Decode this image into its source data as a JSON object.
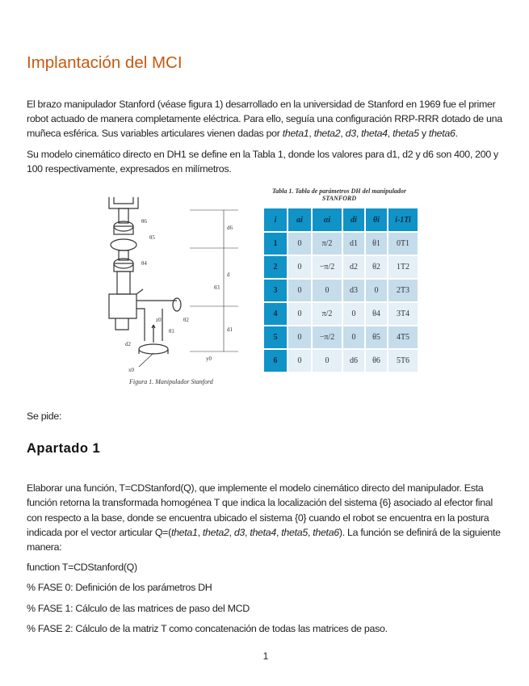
{
  "title": "Implantación del MCI",
  "intro": {
    "p1_pre": "El brazo manipulador Stanford (véase figura 1) desarrollado en la universidad de Stanford en 1969 fue el primer robot actuado de manera completamente eléctrica. Para ello, seguía una configuración RRP-RRR dotado de una muñeca esférica. Sus variables articulares vienen dadas por ",
    "vars": [
      "theta1",
      "theta2",
      "d3",
      "theta4",
      "theta5",
      "theta6"
    ],
    "p2": "Su modelo cinemático directo en DH1 se define en la Tabla 1, donde los valores para d1, d2 y d6 son 400, 200 y 100 respectivamente, expresados en milímetros."
  },
  "figure": {
    "caption": "Figura 1. Manipulador Stanford",
    "labels": [
      "θ6",
      "θ5",
      "θ4",
      "θ3",
      "θ2",
      "θ1",
      "d6",
      "d",
      "d1",
      "d2",
      "z0",
      "y0",
      "x0"
    ]
  },
  "table": {
    "caption": "Tabla 1. Tabla de parámetros DH del manipulador STANFORD",
    "headers": [
      "i",
      "ai",
      "αi",
      "di",
      "θi",
      "i-1Ti"
    ],
    "rows": [
      [
        "1",
        "0",
        "π/2",
        "d1",
        "θ1",
        "0T1"
      ],
      [
        "2",
        "0",
        "−π/2",
        "d2",
        "θ2",
        "1T2"
      ],
      [
        "3",
        "0",
        "0",
        "d3",
        "0",
        "2T3"
      ],
      [
        "4",
        "0",
        "π/2",
        "0",
        "θ4",
        "3T4"
      ],
      [
        "5",
        "0",
        "−π/2",
        "0",
        "θ5",
        "4T5"
      ],
      [
        "6",
        "0",
        "0",
        "d6",
        "θ6",
        "5T6"
      ]
    ]
  },
  "se_pide": "Se pide:",
  "section": {
    "title": "Apartado 1",
    "p_pre": "Elaborar una función, T=CDStanford(Q), que implemente el modelo cinemático directo del manipulador. Esta función retorna la transformada homogénea T que indica la localización del sistema {6} asociado al efector final con respecto a la base, donde se encuentra ubicado el sistema {0} cuando el robot se encuentra en la postura indicada por el vector articular  Q=(",
    "p_post": "). La función se definirá de la siguiente manera:",
    "code": [
      "function T=CDStanford(Q)",
      "% FASE 0: Definición de los parámetros DH",
      "% FASE 1: Cálculo de las matrices de paso del MCD",
      "% FASE 2: Cálculo de la matriz T como concatenación de todas las matrices de paso."
    ]
  },
  "page_number": "1"
}
